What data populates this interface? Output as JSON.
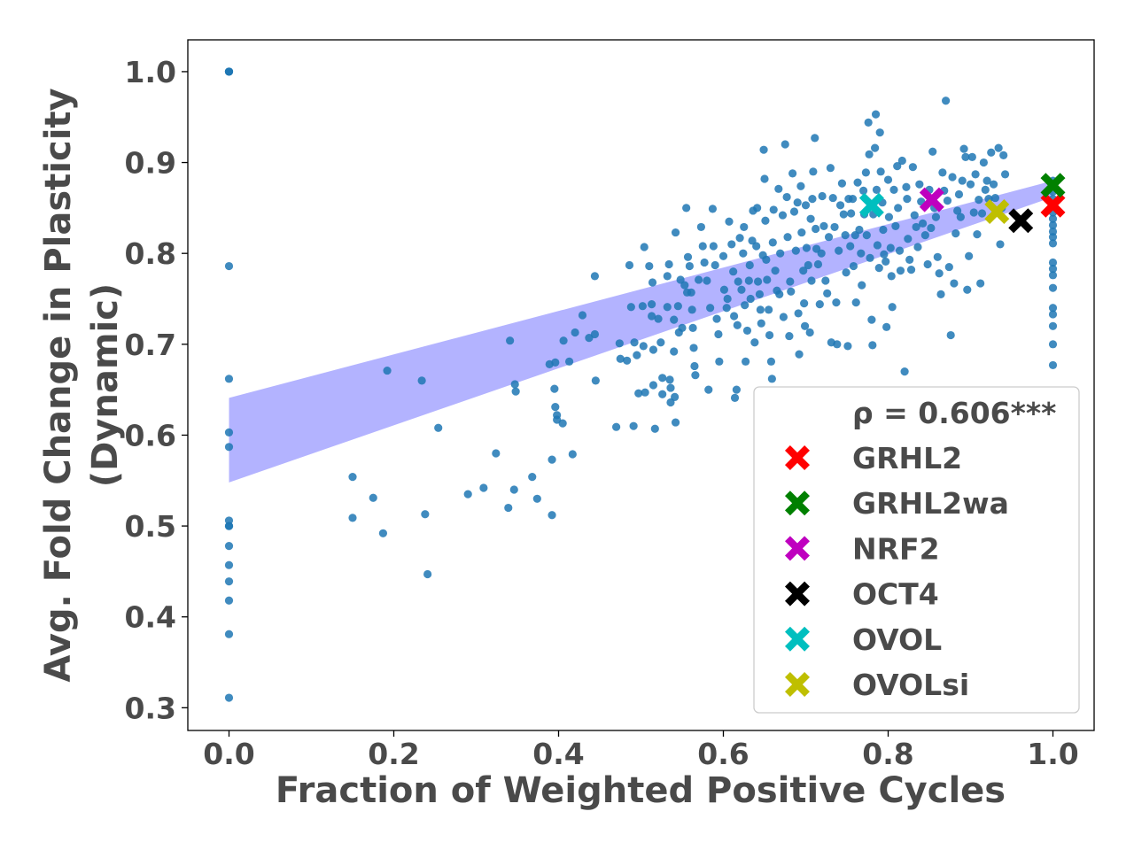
{
  "chart_data": {
    "type": "scatter",
    "xlabel": "Fraction of Weighted Positive Cycles",
    "ylabel_lines": [
      "Avg. Fold Change in Plasticity",
      "(Dynamic)"
    ],
    "xlim": [
      -0.05,
      1.05
    ],
    "ylim": [
      0.275,
      1.035
    ],
    "x_ticks": [
      0.0,
      0.2,
      0.4,
      0.6,
      0.8,
      1.0
    ],
    "x_tick_labels": [
      "0.0",
      "0.2",
      "0.4",
      "0.6",
      "0.8",
      "1.0"
    ],
    "y_ticks": [
      0.3,
      0.4,
      0.5,
      0.6,
      0.7,
      0.8,
      0.9,
      1.0
    ],
    "y_tick_labels": [
      "0.3",
      "0.4",
      "0.5",
      "0.6",
      "0.7",
      "0.8",
      "0.9",
      "1.0"
    ],
    "grid": false,
    "legend_position": "lower-right",
    "correlation_label": "ρ = 0.606***",
    "colors": {
      "points": "#1f77b4",
      "band": "#8080ff",
      "text": "#4a4a4a"
    },
    "confidence_band": {
      "x": [
        0.0,
        1.0
      ],
      "lower": [
        0.548,
        0.862
      ],
      "upper": [
        0.641,
        0.88
      ]
    },
    "scatter_points": [
      [
        0.0,
        1.0
      ],
      [
        0.0,
        1.0
      ],
      [
        0.0,
        1.0
      ],
      [
        0.0,
        1.0
      ],
      [
        0.0,
        0.786
      ],
      [
        0.0,
        0.662
      ],
      [
        0.0,
        0.603
      ],
      [
        0.0,
        0.587
      ],
      [
        0.0,
        0.506
      ],
      [
        0.0,
        0.5
      ],
      [
        0.0,
        0.5
      ],
      [
        0.0,
        0.478
      ],
      [
        0.0,
        0.457
      ],
      [
        0.0,
        0.439
      ],
      [
        0.0,
        0.418
      ],
      [
        0.0,
        0.381
      ],
      [
        0.0,
        0.311
      ],
      [
        0.15,
        0.554
      ],
      [
        0.15,
        0.509
      ],
      [
        0.175,
        0.531
      ],
      [
        0.187,
        0.492
      ],
      [
        0.192,
        0.671
      ],
      [
        0.234,
        0.66
      ],
      [
        0.238,
        0.513
      ],
      [
        0.241,
        0.447
      ],
      [
        0.254,
        0.608
      ],
      [
        0.29,
        0.535
      ],
      [
        0.309,
        0.542
      ],
      [
        0.324,
        0.58
      ],
      [
        0.339,
        0.52
      ],
      [
        0.341,
        0.704
      ],
      [
        0.347,
        0.656
      ],
      [
        0.348,
        0.648
      ],
      [
        0.346,
        0.54
      ],
      [
        0.368,
        0.554
      ],
      [
        0.374,
        0.53
      ],
      [
        0.389,
        0.678
      ],
      [
        0.392,
        0.573
      ],
      [
        0.392,
        0.512
      ],
      [
        0.396,
        0.68
      ],
      [
        0.395,
        0.651
      ],
      [
        0.396,
        0.631
      ],
      [
        0.398,
        0.622
      ],
      [
        0.398,
        0.617
      ],
      [
        0.405,
        0.613
      ],
      [
        0.406,
        0.704
      ],
      [
        0.413,
        0.681
      ],
      [
        0.417,
        0.579
      ],
      [
        0.42,
        0.713
      ],
      [
        0.429,
        0.732
      ],
      [
        0.437,
        0.707
      ],
      [
        0.444,
        0.775
      ],
      [
        0.444,
        0.711
      ],
      [
        0.445,
        0.66
      ],
      [
        0.47,
        0.609
      ],
      [
        0.474,
        0.701
      ],
      [
        0.475,
        0.684
      ],
      [
        0.483,
        0.682
      ],
      [
        0.486,
        0.787
      ],
      [
        0.488,
        0.741
      ],
      [
        0.491,
        0.61
      ],
      [
        0.492,
        0.702
      ],
      [
        0.495,
        0.688
      ],
      [
        0.497,
        0.646
      ],
      [
        0.502,
        0.742
      ],
      [
        0.504,
        0.807
      ],
      [
        0.503,
        0.698
      ],
      [
        0.505,
        0.647
      ],
      [
        0.51,
        0.786
      ],
      [
        0.513,
        0.744
      ],
      [
        0.513,
        0.731
      ],
      [
        0.514,
        0.768
      ],
      [
        0.515,
        0.694
      ],
      [
        0.515,
        0.655
      ],
      [
        0.517,
        0.607
      ],
      [
        0.521,
        0.728
      ],
      [
        0.524,
        0.702
      ],
      [
        0.526,
        0.663
      ],
      [
        0.526,
        0.645
      ],
      [
        0.532,
        0.741
      ],
      [
        0.532,
        0.775
      ],
      [
        0.534,
        0.788
      ],
      [
        0.535,
        0.661
      ],
      [
        0.536,
        0.652
      ],
      [
        0.536,
        0.636
      ],
      [
        0.54,
        0.727
      ],
      [
        0.54,
        0.692
      ],
      [
        0.541,
        0.642
      ],
      [
        0.542,
        0.614
      ],
      [
        0.542,
        0.823
      ],
      [
        0.545,
        0.742
      ],
      [
        0.546,
        0.713
      ],
      [
        0.548,
        0.771
      ],
      [
        0.55,
        0.718
      ],
      [
        0.553,
        0.765
      ],
      [
        0.555,
        0.85
      ],
      [
        0.556,
        0.757
      ],
      [
        0.557,
        0.796
      ],
      [
        0.559,
        0.786
      ],
      [
        0.561,
        0.757
      ],
      [
        0.562,
        0.738
      ],
      [
        0.563,
        0.718
      ],
      [
        0.564,
        0.696
      ],
      [
        0.565,
        0.676
      ],
      [
        0.566,
        0.666
      ],
      [
        0.57,
        0.771
      ],
      [
        0.573,
        0.829
      ],
      [
        0.575,
        0.808
      ],
      [
        0.577,
        0.79
      ],
      [
        0.58,
        0.77
      ],
      [
        0.582,
        0.65
      ],
      [
        0.584,
        0.74
      ],
      [
        0.587,
        0.849
      ],
      [
        0.588,
        0.808
      ],
      [
        0.59,
        0.787
      ],
      [
        0.592,
        0.728
      ],
      [
        0.594,
        0.711
      ],
      [
        0.595,
        0.681
      ],
      [
        0.6,
        0.797
      ],
      [
        0.601,
        0.76
      ],
      [
        0.604,
        0.74
      ],
      [
        0.605,
        0.75
      ],
      [
        0.607,
        0.835
      ],
      [
        0.61,
        0.81
      ],
      [
        0.612,
        0.78
      ],
      [
        0.613,
        0.731
      ],
      [
        0.614,
        0.641
      ],
      [
        0.616,
        0.65
      ],
      [
        0.617,
        0.721
      ],
      [
        0.618,
        0.769
      ],
      [
        0.62,
        0.817
      ],
      [
        0.622,
        0.76
      ],
      [
        0.624,
        0.8
      ],
      [
        0.625,
        0.829
      ],
      [
        0.626,
        0.743
      ],
      [
        0.627,
        0.681
      ],
      [
        0.629,
        0.715
      ],
      [
        0.631,
        0.77
      ],
      [
        0.632,
        0.787
      ],
      [
        0.633,
        0.75
      ],
      [
        0.635,
        0.814
      ],
      [
        0.636,
        0.847
      ],
      [
        0.638,
        0.702
      ],
      [
        0.64,
        0.808
      ],
      [
        0.641,
        0.85
      ],
      [
        0.642,
        0.769
      ],
      [
        0.644,
        0.755
      ],
      [
        0.645,
        0.738
      ],
      [
        0.646,
        0.723
      ],
      [
        0.648,
        0.798
      ],
      [
        0.649,
        0.914
      ],
      [
        0.65,
        0.882
      ],
      [
        0.651,
        0.836
      ],
      [
        0.652,
        0.793
      ],
      [
        0.653,
        0.771
      ],
      [
        0.655,
        0.738
      ],
      [
        0.656,
        0.71
      ],
      [
        0.658,
        0.681
      ],
      [
        0.659,
        0.662
      ],
      [
        0.66,
        0.812
      ],
      [
        0.661,
        0.848
      ],
      [
        0.663,
        0.781
      ],
      [
        0.665,
        0.759
      ],
      [
        0.667,
        0.871
      ],
      [
        0.668,
        0.755
      ],
      [
        0.669,
        0.8
      ],
      [
        0.672,
        0.842
      ],
      [
        0.673,
        0.73
      ],
      [
        0.675,
        0.92
      ],
      [
        0.677,
        0.862
      ],
      [
        0.678,
        0.818
      ],
      [
        0.68,
        0.709
      ],
      [
        0.681,
        0.769
      ],
      [
        0.682,
        0.758
      ],
      [
        0.684,
        0.888
      ],
      [
        0.686,
        0.846
      ],
      [
        0.688,
        0.803
      ],
      [
        0.69,
        0.856
      ],
      [
        0.691,
        0.734
      ],
      [
        0.692,
        0.689
      ],
      [
        0.694,
        0.874
      ],
      [
        0.695,
        0.823
      ],
      [
        0.697,
        0.781
      ],
      [
        0.698,
        0.745
      ],
      [
        0.699,
        0.72
      ],
      [
        0.7,
        0.853
      ],
      [
        0.701,
        0.806
      ],
      [
        0.703,
        0.787
      ],
      [
        0.705,
        0.713
      ],
      [
        0.706,
        0.838
      ],
      [
        0.707,
        0.77
      ],
      [
        0.708,
        0.86
      ],
      [
        0.709,
        0.89
      ],
      [
        0.711,
        0.927
      ],
      [
        0.712,
        0.827
      ],
      [
        0.713,
        0.805
      ],
      [
        0.715,
        0.788
      ],
      [
        0.717,
        0.744
      ],
      [
        0.719,
        0.8
      ],
      [
        0.72,
        0.863
      ],
      [
        0.722,
        0.83
      ],
      [
        0.724,
        0.77
      ],
      [
        0.726,
        0.756
      ],
      [
        0.728,
        0.818
      ],
      [
        0.73,
        0.894
      ],
      [
        0.731,
        0.702
      ],
      [
        0.733,
        0.861
      ],
      [
        0.735,
        0.829
      ],
      [
        0.737,
        0.746
      ],
      [
        0.738,
        0.7
      ],
      [
        0.74,
        0.803
      ],
      [
        0.742,
        0.853
      ],
      [
        0.744,
        0.877
      ],
      [
        0.746,
        0.843
      ],
      [
        0.748,
        0.82
      ],
      [
        0.749,
        0.779
      ],
      [
        0.751,
        0.698
      ],
      [
        0.752,
        0.86
      ],
      [
        0.754,
        0.808
      ],
      [
        0.755,
        0.844
      ],
      [
        0.757,
        0.86
      ],
      [
        0.758,
        0.786
      ],
      [
        0.76,
        0.82
      ],
      [
        0.761,
        0.746
      ],
      [
        0.763,
        0.878
      ],
      [
        0.765,
        0.826
      ],
      [
        0.767,
        0.8
      ],
      [
        0.768,
        0.765
      ],
      [
        0.77,
        0.869
      ],
      [
        0.771,
        0.843
      ],
      [
        0.773,
        0.889
      ],
      [
        0.774,
        0.82
      ],
      [
        0.776,
        0.944
      ],
      [
        0.777,
        0.909
      ],
      [
        0.778,
        0.795
      ],
      [
        0.78,
        0.727
      ],
      [
        0.781,
        0.699
      ],
      [
        0.782,
        0.843
      ],
      [
        0.784,
        0.916
      ],
      [
        0.785,
        0.953
      ],
      [
        0.786,
        0.87
      ],
      [
        0.787,
        0.809
      ],
      [
        0.789,
        0.784
      ],
      [
        0.79,
        0.933
      ],
      [
        0.791,
        0.89
      ],
      [
        0.793,
        0.856
      ],
      [
        0.794,
        0.826
      ],
      [
        0.795,
        0.799
      ],
      [
        0.797,
        0.791
      ],
      [
        0.798,
        0.719
      ],
      [
        0.8,
        0.881
      ],
      [
        0.801,
        0.84
      ],
      [
        0.803,
        0.806
      ],
      [
        0.804,
        0.775
      ],
      [
        0.805,
        0.741
      ],
      [
        0.807,
        0.87
      ],
      [
        0.809,
        0.83
      ],
      [
        0.811,
        0.896
      ],
      [
        0.812,
        0.85
      ],
      [
        0.814,
        0.803
      ],
      [
        0.815,
        0.781
      ],
      [
        0.817,
        0.902
      ],
      [
        0.82,
        0.67
      ],
      [
        0.822,
        0.873
      ],
      [
        0.823,
        0.86
      ],
      [
        0.824,
        0.816
      ],
      [
        0.826,
        0.793
      ],
      [
        0.828,
        0.782
      ],
      [
        0.83,
        0.895
      ],
      [
        0.832,
        0.842
      ],
      [
        0.834,
        0.829
      ],
      [
        0.836,
        0.807
      ],
      [
        0.838,
        0.876
      ],
      [
        0.84,
        0.857
      ],
      [
        0.842,
        0.833
      ],
      [
        0.845,
        0.82
      ],
      [
        0.848,
        0.788
      ],
      [
        0.85,
        0.87
      ],
      [
        0.852,
        0.828
      ],
      [
        0.854,
        0.912
      ],
      [
        0.856,
        0.85
      ],
      [
        0.858,
        0.84
      ],
      [
        0.86,
        0.796
      ],
      [
        0.862,
        0.778
      ],
      [
        0.864,
        0.755
      ],
      [
        0.866,
        0.889
      ],
      [
        0.868,
        0.869
      ],
      [
        0.87,
        0.968
      ],
      [
        0.872,
        0.858
      ],
      [
        0.874,
        0.785
      ],
      [
        0.876,
        0.71
      ],
      [
        0.878,
        0.884
      ],
      [
        0.88,
        0.767
      ],
      [
        0.882,
        0.822
      ],
      [
        0.884,
        0.847
      ],
      [
        0.886,
        0.865
      ],
      [
        0.888,
        0.84
      ],
      [
        0.89,
        0.88
      ],
      [
        0.892,
        0.915
      ],
      [
        0.894,
        0.906
      ],
      [
        0.896,
        0.76
      ],
      [
        0.898,
        0.797
      ],
      [
        0.9,
        0.876
      ],
      [
        0.902,
        0.906
      ],
      [
        0.904,
        0.845
      ],
      [
        0.906,
        0.887
      ],
      [
        0.908,
        0.821
      ],
      [
        0.91,
        0.859
      ],
      [
        0.912,
        0.767
      ],
      [
        0.914,
        0.844
      ],
      [
        0.916,
        0.9
      ],
      [
        0.918,
        0.87
      ],
      [
        0.92,
        0.88
      ],
      [
        0.922,
        0.86
      ],
      [
        0.925,
        0.911
      ],
      [
        0.928,
        0.876
      ],
      [
        0.93,
        0.861
      ],
      [
        0.932,
        0.847
      ],
      [
        0.934,
        0.916
      ],
      [
        0.936,
        0.81
      ],
      [
        0.938,
        0.85
      ],
      [
        0.94,
        0.908
      ],
      [
        0.942,
        0.887
      ],
      [
        1.0,
        0.88
      ],
      [
        1.0,
        0.874
      ],
      [
        1.0,
        0.868
      ],
      [
        1.0,
        0.86
      ],
      [
        1.0,
        0.852
      ],
      [
        1.0,
        0.845
      ],
      [
        1.0,
        0.838
      ],
      [
        1.0,
        0.831
      ],
      [
        1.0,
        0.824
      ],
      [
        1.0,
        0.818
      ],
      [
        1.0,
        0.811
      ],
      [
        1.0,
        0.79
      ],
      [
        1.0,
        0.783
      ],
      [
        1.0,
        0.776
      ],
      [
        1.0,
        0.762
      ],
      [
        1.0,
        0.74
      ],
      [
        1.0,
        0.733
      ],
      [
        1.0,
        0.72
      ],
      [
        1.0,
        0.7
      ],
      [
        1.0,
        0.677
      ]
    ],
    "highlights": [
      {
        "label": "GRHL2",
        "x": 1.0,
        "y": 0.853,
        "color": "#ff0000"
      },
      {
        "label": "GRHL2wa",
        "x": 1.0,
        "y": 0.875,
        "color": "#008000"
      },
      {
        "label": "NRF2",
        "x": 0.853,
        "y": 0.859,
        "color": "#bf00bf"
      },
      {
        "label": "OCT4",
        "x": 0.961,
        "y": 0.836,
        "color": "#000000"
      },
      {
        "label": "OVOL",
        "x": 0.78,
        "y": 0.853,
        "color": "#00bfbf"
      },
      {
        "label": "OVOLsi",
        "x": 0.932,
        "y": 0.846,
        "color": "#bfbf00"
      }
    ]
  }
}
